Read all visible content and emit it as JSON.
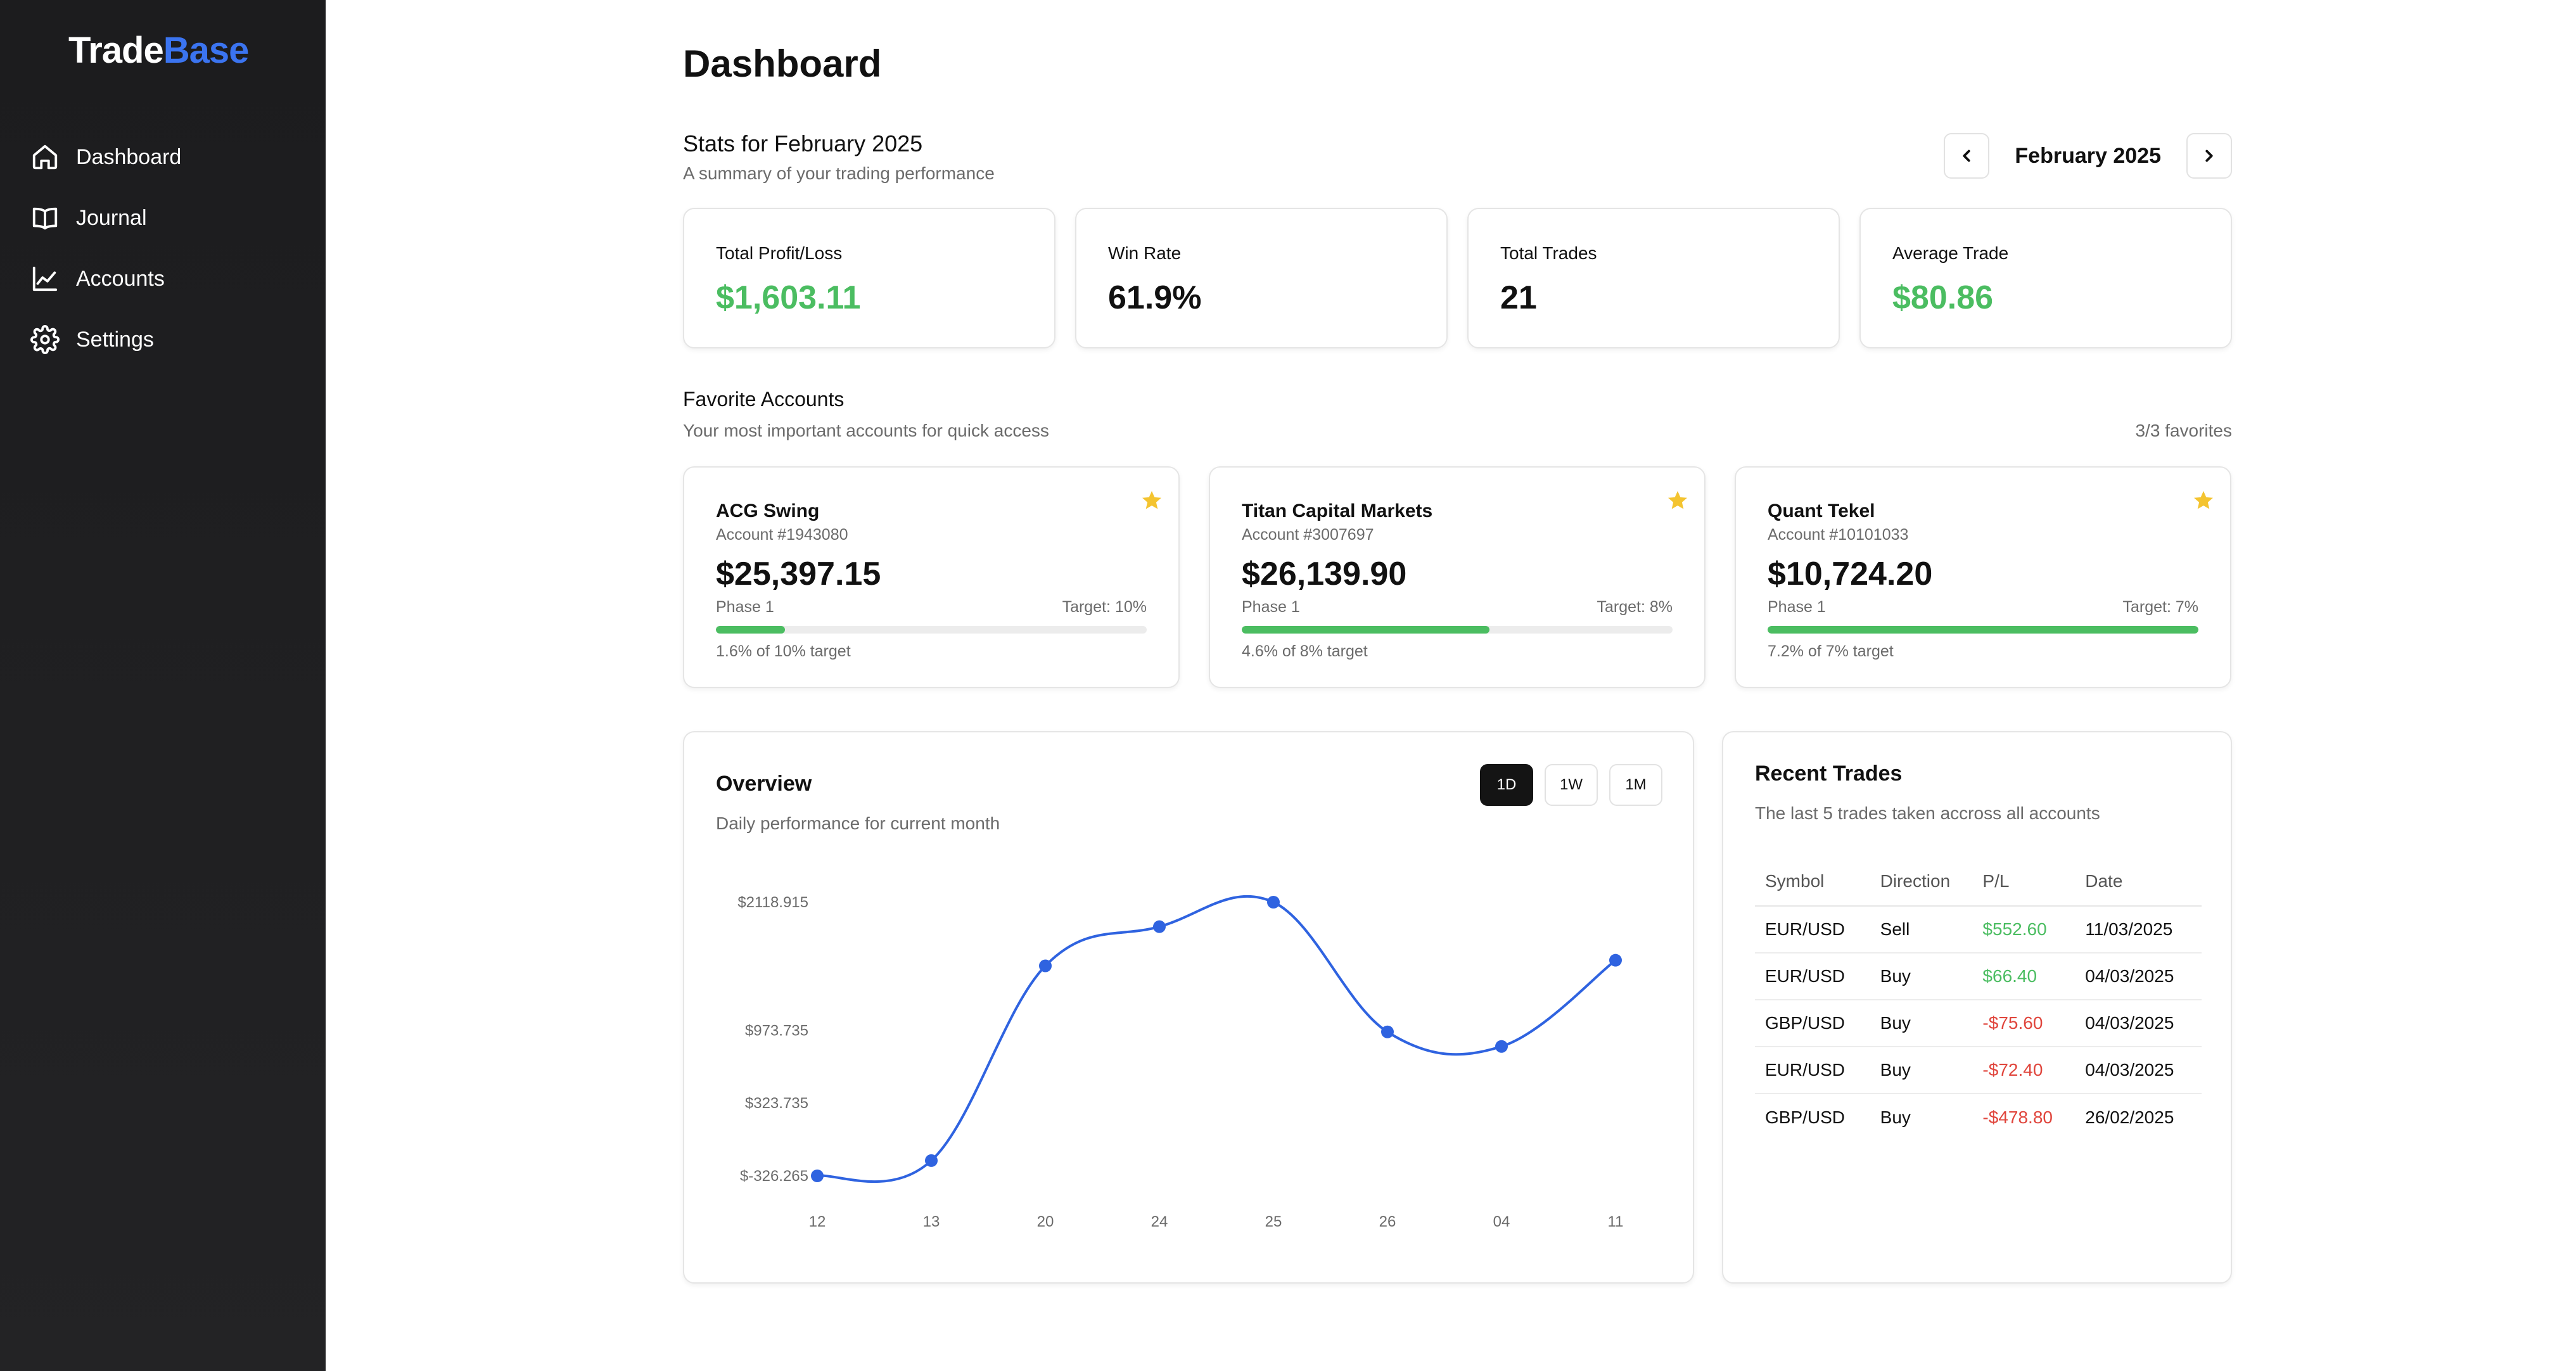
{
  "app": {
    "logo_main": "Trade",
    "logo_accent": "Base",
    "accent_color": "#3b74f0"
  },
  "sidebar": {
    "items": [
      {
        "label": "Dashboard",
        "icon": "home-icon"
      },
      {
        "label": "Journal",
        "icon": "book-icon"
      },
      {
        "label": "Accounts",
        "icon": "chart-line-icon"
      },
      {
        "label": "Settings",
        "icon": "gear-icon"
      }
    ]
  },
  "header": {
    "title": "Dashboard"
  },
  "stats": {
    "title": "Stats for February 2025",
    "subtitle": "A summary of your trading performance",
    "month_label": "February 2025",
    "cards": [
      {
        "label": "Total Profit/Loss",
        "value": "$1,603.11",
        "tone": "positive"
      },
      {
        "label": "Win Rate",
        "value": "61.9%",
        "tone": "neutral"
      },
      {
        "label": "Total Trades",
        "value": "21",
        "tone": "neutral"
      },
      {
        "label": "Average Trade",
        "value": "$80.86",
        "tone": "positive"
      }
    ]
  },
  "favorites": {
    "title": "Favorite Accounts",
    "subtitle": "Your most important accounts for quick access",
    "count_label": "3/3 favorites",
    "accounts": [
      {
        "name": "ACG Swing",
        "number": "Account #1943080",
        "balance": "$25,397.15",
        "phase": "Phase 1",
        "target": "Target: 10%",
        "progress_text": "1.6% of 10% target",
        "progress_fraction": 0.16
      },
      {
        "name": "Titan Capital Markets",
        "number": "Account #3007697",
        "balance": "$26,139.90",
        "phase": "Phase 1",
        "target": "Target: 8%",
        "progress_text": "4.6% of 8% target",
        "progress_fraction": 0.575
      },
      {
        "name": "Quant Tekel",
        "number": "Account #10101033",
        "balance": "$10,724.20",
        "phase": "Phase 1",
        "target": "Target: 7%",
        "progress_text": "7.2% of 7% target",
        "progress_fraction": 1.0
      }
    ]
  },
  "overview": {
    "title": "Overview",
    "subtitle": "Daily performance for current month",
    "ranges": [
      "1D",
      "1W",
      "1M"
    ],
    "active_range": "1D"
  },
  "chart_data": {
    "type": "line",
    "title": "",
    "xlabel": "",
    "ylabel": "",
    "categories": [
      "12",
      "13",
      "20",
      "24",
      "25",
      "26",
      "04",
      "11"
    ],
    "series": [
      {
        "values": [
          -326.265,
          -190,
          1550,
          1900,
          2118.915,
          960,
          830,
          1600
        ]
      }
    ],
    "y_ticks": [
      {
        "label": "$2118.915",
        "value": 2118.915
      },
      {
        "label": "$973.735",
        "value": 973.735
      },
      {
        "label": "$323.735",
        "value": 323.735
      },
      {
        "label": "$-326.265",
        "value": -326.265
      }
    ],
    "ylim": [
      -326.265,
      2118.915
    ],
    "grid": false,
    "line_color": "#2f63e0"
  },
  "recent_trades": {
    "title": "Recent Trades",
    "subtitle": "The last 5 trades taken accross all accounts",
    "columns": [
      "Symbol",
      "Direction",
      "P/L",
      "Date"
    ],
    "rows": [
      {
        "symbol": "EUR/USD",
        "direction": "Sell",
        "pl": "$552.60",
        "tone": "positive",
        "date": "11/03/2025"
      },
      {
        "symbol": "EUR/USD",
        "direction": "Buy",
        "pl": "$66.40",
        "tone": "positive",
        "date": "04/03/2025"
      },
      {
        "symbol": "GBP/USD",
        "direction": "Buy",
        "pl": "-$75.60",
        "tone": "negative",
        "date": "04/03/2025"
      },
      {
        "symbol": "EUR/USD",
        "direction": "Buy",
        "pl": "-$72.40",
        "tone": "negative",
        "date": "04/03/2025"
      },
      {
        "symbol": "GBP/USD",
        "direction": "Buy",
        "pl": "-$478.80",
        "tone": "negative",
        "date": "26/02/2025"
      }
    ]
  },
  "colors": {
    "positive": "#4bbd61",
    "negative": "#e0453c",
    "star": "#f4c430"
  }
}
